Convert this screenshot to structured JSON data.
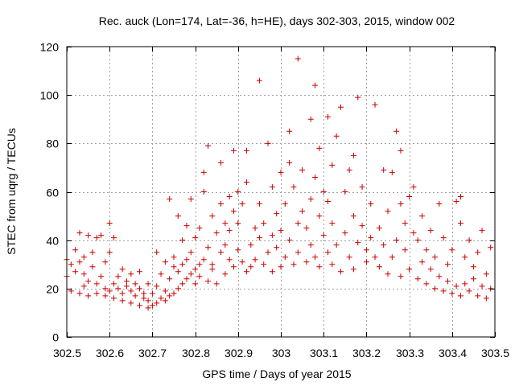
{
  "chart_data": {
    "type": "scatter",
    "title": "Rec. auck (Lon=174, Lat=-36, h=HE), days 302-303, 2015, window 002",
    "xlabel": "GPS time / Days of year 2015",
    "ylabel": "STEC from uqrg / TECUs",
    "xlim": [
      302.5,
      303.5
    ],
    "ylim": [
      0,
      120
    ],
    "xticks": [
      302.5,
      302.6,
      302.7,
      302.8,
      302.9,
      303.0,
      303.1,
      303.2,
      303.3,
      303.4,
      303.5
    ],
    "xtick_labels": [
      "302.5",
      "302.6",
      "302.7",
      "302.8",
      "302.9",
      "303",
      "303.1",
      "303.2",
      "303.3",
      "303.4",
      "303.5"
    ],
    "yticks": [
      0,
      20,
      40,
      60,
      80,
      100,
      120
    ],
    "ytick_labels": [
      "0",
      "20",
      "40",
      "60",
      "80",
      "100",
      "120"
    ],
    "grid": true,
    "marker": "+",
    "color": "#cc0000",
    "series": [
      {
        "name": "STEC",
        "points": [
          [
            302.5,
            25
          ],
          [
            302.5,
            32
          ],
          [
            302.51,
            19
          ],
          [
            302.51,
            30
          ],
          [
            302.52,
            36
          ],
          [
            302.52,
            27
          ],
          [
            302.53,
            18
          ],
          [
            302.53,
            43
          ],
          [
            302.53,
            31
          ],
          [
            302.54,
            21
          ],
          [
            302.54,
            26
          ],
          [
            302.54,
            33
          ],
          [
            302.55,
            17
          ],
          [
            302.55,
            42
          ],
          [
            302.55,
            23
          ],
          [
            302.56,
            29
          ],
          [
            302.56,
            35
          ],
          [
            302.57,
            18
          ],
          [
            302.57,
            41
          ],
          [
            302.57,
            22
          ],
          [
            302.58,
            25
          ],
          [
            302.58,
            42
          ],
          [
            302.59,
            17
          ],
          [
            302.59,
            31
          ],
          [
            302.59,
            20
          ],
          [
            302.6,
            19
          ],
          [
            302.6,
            47
          ],
          [
            302.6,
            35
          ],
          [
            302.61,
            16
          ],
          [
            302.61,
            22
          ],
          [
            302.61,
            41
          ],
          [
            302.62,
            20
          ],
          [
            302.62,
            25
          ],
          [
            302.63,
            15
          ],
          [
            302.63,
            18
          ],
          [
            302.63,
            28
          ],
          [
            302.64,
            21
          ],
          [
            302.64,
            23
          ],
          [
            302.65,
            14
          ],
          [
            302.65,
            19
          ],
          [
            302.65,
            26
          ],
          [
            302.66,
            17
          ],
          [
            302.66,
            22
          ],
          [
            302.67,
            13
          ],
          [
            302.67,
            20
          ],
          [
            302.67,
            27
          ],
          [
            302.68,
            16
          ],
          [
            302.68,
            18
          ],
          [
            302.69,
            12
          ],
          [
            302.69,
            15
          ],
          [
            302.69,
            22
          ],
          [
            302.7,
            13
          ],
          [
            302.7,
            18
          ],
          [
            302.71,
            14
          ],
          [
            302.71,
            35
          ],
          [
            302.71,
            21
          ],
          [
            302.72,
            16
          ],
          [
            302.72,
            26
          ],
          [
            302.73,
            15
          ],
          [
            302.73,
            19
          ],
          [
            302.73,
            31
          ],
          [
            302.74,
            17
          ],
          [
            302.74,
            24
          ],
          [
            302.74,
            57
          ],
          [
            302.75,
            18
          ],
          [
            302.75,
            29
          ],
          [
            302.75,
            33
          ],
          [
            302.76,
            20
          ],
          [
            302.76,
            27
          ],
          [
            302.76,
            50
          ],
          [
            302.77,
            22
          ],
          [
            302.77,
            30
          ],
          [
            302.77,
            40
          ],
          [
            302.78,
            24
          ],
          [
            302.78,
            32
          ],
          [
            302.78,
            46
          ],
          [
            302.79,
            26
          ],
          [
            302.79,
            35
          ],
          [
            302.79,
            57
          ],
          [
            302.8,
            28
          ],
          [
            302.8,
            22
          ],
          [
            302.8,
            41
          ],
          [
            302.81,
            30
          ],
          [
            302.81,
            25
          ],
          [
            302.81,
            45
          ],
          [
            302.82,
            32
          ],
          [
            302.82,
            60
          ],
          [
            302.82,
            68
          ],
          [
            302.83,
            23
          ],
          [
            302.83,
            37
          ],
          [
            302.83,
            79
          ],
          [
            302.84,
            28
          ],
          [
            302.84,
            50
          ],
          [
            302.84,
            30
          ],
          [
            302.85,
            22
          ],
          [
            302.85,
            43
          ],
          [
            302.86,
            35
          ],
          [
            302.86,
            55
          ],
          [
            302.86,
            72
          ],
          [
            302.87,
            26
          ],
          [
            302.87,
            47
          ],
          [
            302.87,
            38
          ],
          [
            302.88,
            32
          ],
          [
            302.88,
            58
          ],
          [
            302.88,
            44
          ],
          [
            302.89,
            29
          ],
          [
            302.89,
            52
          ],
          [
            302.89,
            77
          ],
          [
            302.9,
            36
          ],
          [
            302.9,
            60
          ],
          [
            302.9,
            47
          ],
          [
            302.91,
            31
          ],
          [
            302.91,
            55
          ],
          [
            302.92,
            27
          ],
          [
            302.92,
            64
          ],
          [
            302.92,
            77
          ],
          [
            302.93,
            38
          ],
          [
            302.93,
            29
          ],
          [
            302.94,
            45
          ],
          [
            302.94,
            32
          ],
          [
            302.95,
            55
          ],
          [
            302.95,
            41
          ],
          [
            302.95,
            106
          ],
          [
            302.96,
            30
          ],
          [
            302.96,
            47
          ],
          [
            302.97,
            35
          ],
          [
            302.97,
            80
          ],
          [
            302.98,
            27
          ],
          [
            302.98,
            62
          ],
          [
            302.98,
            42
          ],
          [
            302.99,
            37
          ],
          [
            302.99,
            51
          ],
          [
            303.0,
            29
          ],
          [
            303.0,
            68
          ],
          [
            303.0,
            44
          ],
          [
            303.01,
            33
          ],
          [
            303.01,
            55
          ],
          [
            303.02,
            40
          ],
          [
            303.02,
            85
          ],
          [
            303.02,
            72
          ],
          [
            303.03,
            30
          ],
          [
            303.03,
            62
          ],
          [
            303.04,
            47
          ],
          [
            303.04,
            115
          ],
          [
            303.04,
            35
          ],
          [
            303.05,
            52
          ],
          [
            303.05,
            69
          ],
          [
            303.06,
            31
          ],
          [
            303.06,
            45
          ],
          [
            303.07,
            38
          ],
          [
            303.07,
            90
          ],
          [
            303.07,
            57
          ],
          [
            303.08,
            33
          ],
          [
            303.08,
            104
          ],
          [
            303.08,
            66
          ],
          [
            303.09,
            29
          ],
          [
            303.09,
            50
          ],
          [
            303.09,
            78
          ],
          [
            303.1,
            42
          ],
          [
            303.1,
            60
          ],
          [
            303.11,
            35
          ],
          [
            303.11,
            91
          ],
          [
            303.11,
            56
          ],
          [
            303.12,
            30
          ],
          [
            303.12,
            47
          ],
          [
            303.12,
            71
          ],
          [
            303.13,
            38
          ],
          [
            303.13,
            83
          ],
          [
            303.14,
            27
          ],
          [
            303.14,
            95
          ],
          [
            303.15,
            43
          ],
          [
            303.15,
            60
          ],
          [
            303.16,
            33
          ],
          [
            303.16,
            69
          ],
          [
            303.17,
            50
          ],
          [
            303.17,
            75
          ],
          [
            303.17,
            28
          ],
          [
            303.18,
            39
          ],
          [
            303.18,
            99
          ],
          [
            303.19,
            46
          ],
          [
            303.19,
            62
          ],
          [
            303.2,
            31
          ],
          [
            303.2,
            36
          ],
          [
            303.21,
            41
          ],
          [
            303.21,
            55
          ],
          [
            303.22,
            33
          ],
          [
            303.22,
            96
          ],
          [
            303.23,
            29
          ],
          [
            303.23,
            45
          ],
          [
            303.24,
            38
          ],
          [
            303.24,
            69
          ],
          [
            303.25,
            26
          ],
          [
            303.25,
            52
          ],
          [
            303.26,
            33
          ],
          [
            303.26,
            68
          ],
          [
            303.27,
            40
          ],
          [
            303.27,
            85
          ],
          [
            303.28,
            25
          ],
          [
            303.28,
            55
          ],
          [
            303.28,
            77
          ],
          [
            303.29,
            36
          ],
          [
            303.29,
            47
          ],
          [
            303.3,
            28
          ],
          [
            303.3,
            58
          ],
          [
            303.31,
            43
          ],
          [
            303.31,
            62
          ],
          [
            303.32,
            24
          ],
          [
            303.32,
            40
          ],
          [
            303.33,
            31
          ],
          [
            303.33,
            50
          ],
          [
            303.34,
            22
          ],
          [
            303.34,
            36
          ],
          [
            303.35,
            28
          ],
          [
            303.35,
            44
          ],
          [
            303.36,
            20
          ],
          [
            303.36,
            33
          ],
          [
            303.37,
            25
          ],
          [
            303.37,
            55
          ],
          [
            303.38,
            19
          ],
          [
            303.38,
            41
          ],
          [
            303.39,
            23
          ],
          [
            303.39,
            30
          ],
          [
            303.4,
            18
          ],
          [
            303.4,
            36
          ],
          [
            303.41,
            21
          ],
          [
            303.41,
            56
          ],
          [
            303.42,
            17
          ],
          [
            303.42,
            47
          ],
          [
            303.42,
            58
          ],
          [
            303.43,
            22
          ],
          [
            303.43,
            33
          ],
          [
            303.44,
            19
          ],
          [
            303.44,
            40
          ],
          [
            303.45,
            24
          ],
          [
            303.45,
            29
          ],
          [
            303.46,
            17
          ],
          [
            303.46,
            35
          ],
          [
            303.47,
            21
          ],
          [
            303.47,
            44
          ],
          [
            303.48,
            16
          ],
          [
            303.48,
            26
          ],
          [
            303.49,
            20
          ],
          [
            303.49,
            37
          ]
        ]
      }
    ]
  }
}
